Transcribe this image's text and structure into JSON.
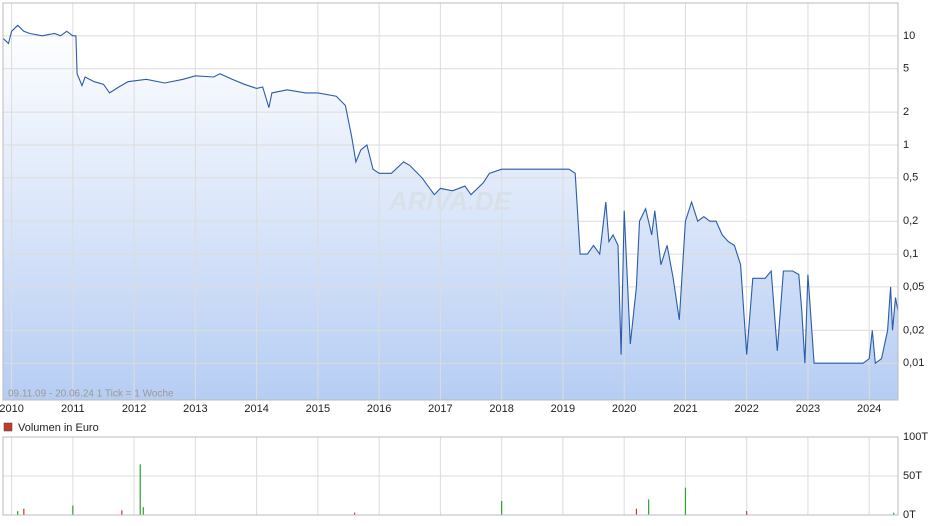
{
  "chart_data": [
    {
      "type": "line",
      "annotation": "09.11.09 - 20.06.24   1 Tick = 1 Woche",
      "watermark": "ARIVA.DE",
      "log_scale": true,
      "grid": true,
      "color": "#2a5caa",
      "fill_top": "#ffffff",
      "fill_bottom": "#b6cdf3",
      "xlim": [
        2009.86,
        2024.47
      ],
      "xticks": [
        2010,
        2011,
        2012,
        2013,
        2014,
        2015,
        2016,
        2017,
        2018,
        2019,
        2020,
        2021,
        2022,
        2023,
        2024
      ],
      "ylim": [
        0.0046,
        20
      ],
      "yticks": [
        10,
        5,
        2,
        1,
        {
          "value": 0.5,
          "label": "0,5"
        },
        {
          "value": 0.2,
          "label": "0,2"
        },
        {
          "value": 0.1,
          "label": "0,1"
        },
        {
          "value": 0.05,
          "label": "0,05"
        },
        {
          "value": 0.02,
          "label": "0,02"
        },
        {
          "value": 0.01,
          "label": "0,01"
        }
      ],
      "x": [
        2009.86,
        2009.95,
        2010.0,
        2010.1,
        2010.2,
        2010.3,
        2010.5,
        2010.7,
        2010.8,
        2010.9,
        2011.0,
        2011.05,
        2011.07,
        2011.15,
        2011.2,
        2011.35,
        2011.5,
        2011.6,
        2011.75,
        2011.9,
        2012.2,
        2012.5,
        2012.8,
        2013.0,
        2013.3,
        2013.4,
        2013.6,
        2013.8,
        2014.0,
        2014.1,
        2014.2,
        2014.25,
        2014.5,
        2014.8,
        2015.0,
        2015.3,
        2015.45,
        2015.55,
        2015.62,
        2015.7,
        2015.8,
        2015.9,
        2016.0,
        2016.2,
        2016.4,
        2016.5,
        2016.7,
        2016.9,
        2017.0,
        2017.2,
        2017.4,
        2017.5,
        2017.7,
        2017.8,
        2018.0,
        2018.5,
        2018.9,
        2019.1,
        2019.2,
        2019.28,
        2019.4,
        2019.5,
        2019.6,
        2019.7,
        2019.75,
        2019.82,
        2019.9,
        2019.95,
        2020.0,
        2020.1,
        2020.2,
        2020.25,
        2020.35,
        2020.45,
        2020.5,
        2020.6,
        2020.7,
        2020.8,
        2020.9,
        2021.0,
        2021.1,
        2021.2,
        2021.3,
        2021.4,
        2021.5,
        2021.6,
        2021.7,
        2021.8,
        2021.9,
        2022.0,
        2022.1,
        2022.2,
        2022.3,
        2022.4,
        2022.5,
        2022.6,
        2022.75,
        2022.85,
        2022.9,
        2022.95,
        2023.0,
        2023.1,
        2023.2,
        2023.6,
        2023.9,
        2024.0,
        2024.05,
        2024.1,
        2024.2,
        2024.3,
        2024.35,
        2024.38,
        2024.43,
        2024.47
      ],
      "values": [
        9.5,
        8.5,
        11,
        12.5,
        11,
        10.5,
        10,
        10.5,
        10,
        11,
        10,
        10,
        4.5,
        3.5,
        4.2,
        3.8,
        3.6,
        3.0,
        3.4,
        3.8,
        4.0,
        3.7,
        4.0,
        4.3,
        4.2,
        4.5,
        4.0,
        3.6,
        3.3,
        3.4,
        2.2,
        3.0,
        3.2,
        3.0,
        3.0,
        2.8,
        2.3,
        1.2,
        0.7,
        0.9,
        1.0,
        0.6,
        0.55,
        0.55,
        0.7,
        0.65,
        0.5,
        0.35,
        0.4,
        0.38,
        0.42,
        0.35,
        0.45,
        0.55,
        0.6,
        0.6,
        0.6,
        0.6,
        0.55,
        0.1,
        0.1,
        0.12,
        0.1,
        0.3,
        0.13,
        0.15,
        0.12,
        0.012,
        0.25,
        0.015,
        0.05,
        0.2,
        0.26,
        0.15,
        0.25,
        0.08,
        0.12,
        0.06,
        0.025,
        0.2,
        0.3,
        0.2,
        0.22,
        0.2,
        0.2,
        0.15,
        0.13,
        0.12,
        0.08,
        0.012,
        0.06,
        0.06,
        0.06,
        0.07,
        0.013,
        0.07,
        0.07,
        0.065,
        0.03,
        0.01,
        0.065,
        0.01,
        0.01,
        0.01,
        0.01,
        0.011,
        0.02,
        0.01,
        0.011,
        0.02,
        0.05,
        0.02,
        0.04,
        0.03
      ]
    },
    {
      "type": "bar",
      "grid": true,
      "xlim": [
        2009.86,
        2024.47
      ],
      "ylim": [
        0,
        100000
      ],
      "yticks": [
        {
          "value": 0,
          "label": "0T"
        },
        {
          "value": 50000,
          "label": "50T"
        },
        {
          "value": 100000,
          "label": "100T"
        }
      ],
      "series": [
        {
          "name": "Volumen in Euro",
          "color": "#c0392b",
          "x": [
            2010.1,
            2010.2,
            2011.0,
            2011.8,
            2012.1,
            2012.15,
            2015.6,
            2018.0,
            2020.2,
            2020.4,
            2021.0,
            2022.0,
            2024.4
          ],
          "values": [
            5000,
            8000,
            12000,
            6000,
            65000,
            10000,
            3000,
            18000,
            8000,
            20000,
            35000,
            5000,
            3000
          ],
          "bar_colors": [
            "#2ca02c",
            "#c0392b",
            "#2ca02c",
            "#c0392b",
            "#2ca02c",
            "#2ca02c",
            "#c0392b",
            "#2ca02c",
            "#c0392b",
            "#2ca02c",
            "#2ca02c",
            "#c0392b",
            "#2ca02c"
          ]
        }
      ]
    }
  ]
}
